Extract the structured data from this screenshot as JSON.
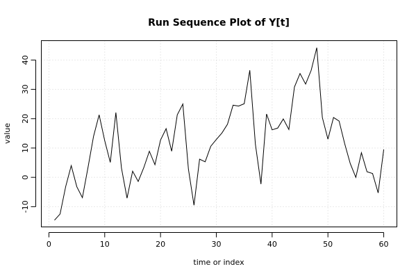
{
  "chart_data": {
    "type": "line",
    "title": "Run Sequence Plot of Y[t]",
    "xlabel": "time or index",
    "ylabel": "value",
    "xlim": [
      -1.36,
      62.36
    ],
    "ylim": [
      -16.9,
      46.6
    ],
    "x_ticks": [
      0,
      10,
      20,
      30,
      40,
      50,
      60
    ],
    "y_ticks": [
      -10,
      0,
      10,
      20,
      30,
      40
    ],
    "grid": true,
    "series": [
      {
        "color": "#000000",
        "x": [
          1,
          2,
          3,
          4,
          5,
          6,
          7,
          8,
          9,
          10,
          11,
          12,
          13,
          14,
          15,
          16,
          17,
          18,
          19,
          20,
          21,
          22,
          23,
          24,
          25,
          26,
          27,
          28,
          29,
          30,
          31,
          32,
          33,
          34,
          35,
          36,
          37,
          38,
          39,
          40,
          41,
          42,
          43,
          44,
          45,
          46,
          47,
          48,
          49,
          50,
          51,
          52,
          53,
          54,
          55,
          56,
          57,
          58,
          59,
          60
        ],
        "values": [
          -14.6,
          -12.5,
          -3.2,
          4.0,
          -3.2,
          -6.9,
          3.3,
          14.0,
          21.3,
          12.5,
          5.1,
          22.1,
          3.2,
          -7.1,
          2.1,
          -1.4,
          3.3,
          8.9,
          4.3,
          12.7,
          16.6,
          8.9,
          21.3,
          25.0,
          2.8,
          -9.5,
          6.2,
          5.3,
          10.6,
          12.9,
          15.1,
          18.1,
          24.6,
          24.3,
          25.1,
          36.5,
          11.3,
          -2.3,
          21.6,
          16.2,
          16.8,
          19.9,
          16.3,
          30.8,
          35.4,
          31.8,
          36.5,
          44.2,
          20.4,
          13.0,
          20.4,
          19.2,
          11.5,
          4.7,
          0.0,
          8.4,
          1.9,
          1.3,
          -5.3,
          9.5
        ]
      }
    ]
  }
}
